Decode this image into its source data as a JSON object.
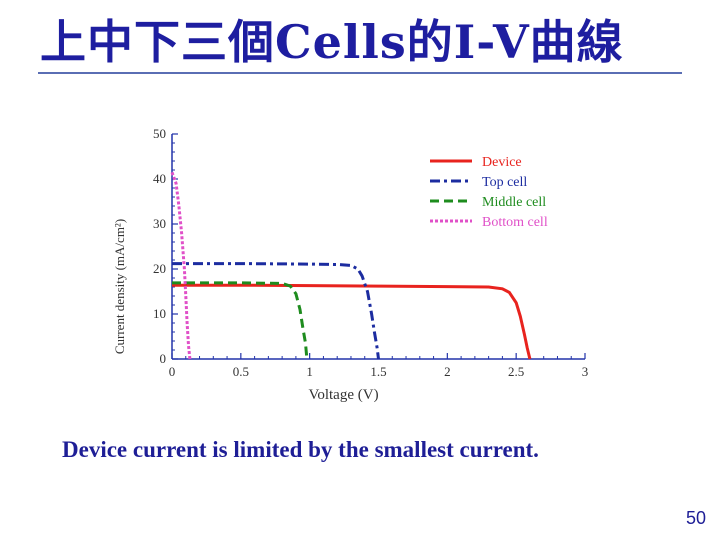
{
  "slide": {
    "title": "上中下三個Cells的I-V曲線",
    "caption": "Device current is limited by the smallest current.",
    "page_number": "50"
  },
  "chart_data": {
    "type": "line",
    "xlabel": "Voltage (V)",
    "ylabel_chars": [
      "C",
      "u",
      "r",
      "r",
      "e",
      "n",
      "t",
      " ",
      "d",
      "e",
      "n",
      "s",
      "i",
      "t",
      "y",
      " ",
      "(",
      "m",
      "A",
      "/",
      "c",
      "m",
      "²",
      ")"
    ],
    "xlim": [
      0,
      3
    ],
    "ylim": [
      0,
      50
    ],
    "xticks": [
      "0",
      "0.5",
      "1",
      "1.5",
      "2",
      "2.5",
      "3"
    ],
    "yticks": [
      "0",
      "10",
      "20",
      "30",
      "40",
      "50"
    ],
    "legend_position": "top-right",
    "grid": false,
    "series": [
      {
        "name": "Device",
        "color": "#e8231e",
        "dash": "",
        "points": [
          [
            0,
            16.4
          ],
          [
            0.5,
            16.4
          ],
          [
            1,
            16.3
          ],
          [
            1.5,
            16.2
          ],
          [
            2,
            16.1
          ],
          [
            2.3,
            16.0
          ],
          [
            2.4,
            15.6
          ],
          [
            2.45,
            14.8
          ],
          [
            2.5,
            12.5
          ],
          [
            2.53,
            9.5
          ],
          [
            2.56,
            5.5
          ],
          [
            2.58,
            2.5
          ],
          [
            2.6,
            0
          ]
        ]
      },
      {
        "name": "Top cell",
        "color": "#1c2ca0",
        "dash": "10 4 3 4",
        "points": [
          [
            0,
            21.2
          ],
          [
            0.5,
            21.2
          ],
          [
            1,
            21.1
          ],
          [
            1.2,
            21.0
          ],
          [
            1.3,
            20.8
          ],
          [
            1.35,
            20.0
          ],
          [
            1.38,
            18.5
          ],
          [
            1.42,
            15
          ],
          [
            1.45,
            10
          ],
          [
            1.47,
            6
          ],
          [
            1.49,
            2.5
          ],
          [
            1.5,
            0
          ]
        ]
      },
      {
        "name": "Middle cell",
        "color": "#1e8c1e",
        "dash": "9 5",
        "points": [
          [
            0,
            16.9
          ],
          [
            0.5,
            16.9
          ],
          [
            0.8,
            16.8
          ],
          [
            0.86,
            16.2
          ],
          [
            0.9,
            14.5
          ],
          [
            0.93,
            11
          ],
          [
            0.95,
            7
          ],
          [
            0.97,
            3.5
          ],
          [
            0.98,
            0
          ]
        ]
      },
      {
        "name": "Bottom cell",
        "color": "#e050c8",
        "dash": "3 2",
        "points": [
          [
            0,
            41.5
          ],
          [
            0.03,
            39
          ],
          [
            0.05,
            34
          ],
          [
            0.07,
            28
          ],
          [
            0.09,
            20
          ],
          [
            0.1,
            14
          ],
          [
            0.11,
            8
          ],
          [
            0.12,
            3
          ],
          [
            0.13,
            0
          ]
        ]
      }
    ]
  }
}
